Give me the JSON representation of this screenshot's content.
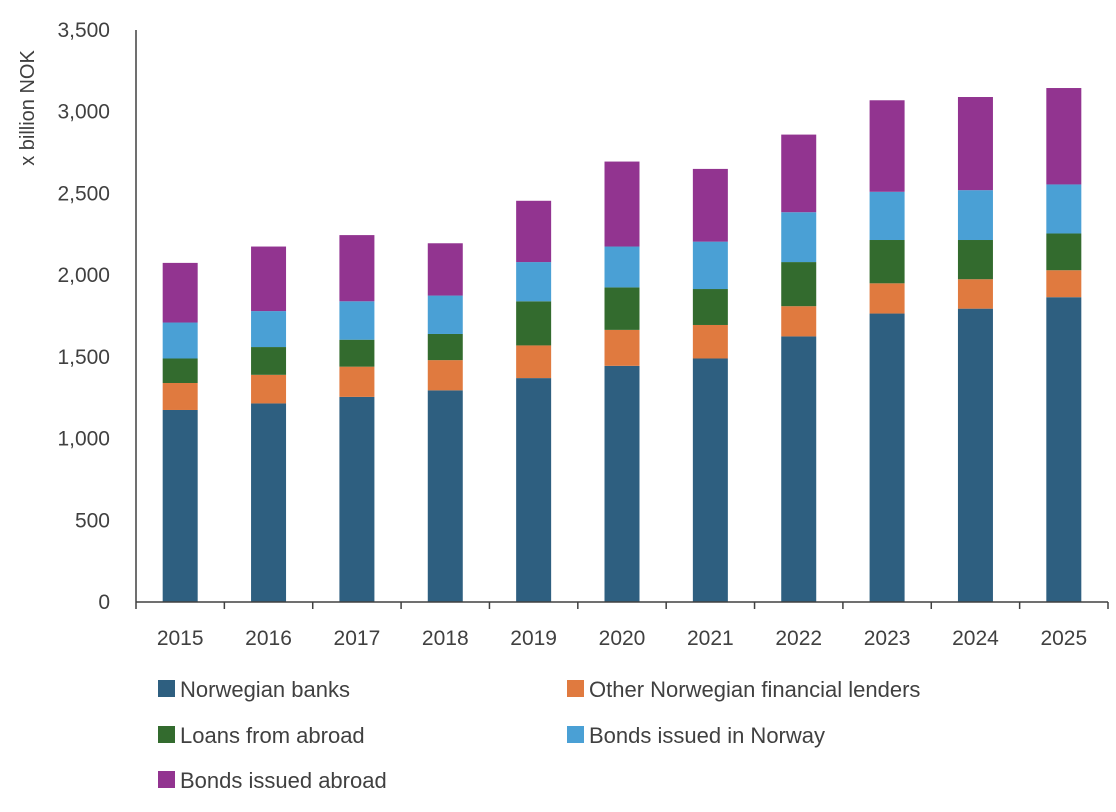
{
  "chart_data": {
    "type": "bar",
    "stacked": true,
    "title": "",
    "xlabel": "",
    "ylabel": "x billion NOK",
    "ylim": [
      0,
      3500
    ],
    "yticks": [
      0,
      500,
      1000,
      1500,
      2000,
      2500,
      3000,
      3500
    ],
    "ytick_labels": [
      "0",
      "500",
      "1,000",
      "1,500",
      "2,000",
      "2,500",
      "3,000",
      "3,500"
    ],
    "categories": [
      "2015",
      "2016",
      "2017",
      "2018",
      "2019",
      "2020",
      "2021",
      "2022",
      "2023",
      "2024",
      "2025"
    ],
    "series": [
      {
        "name": "Norwegian banks",
        "color": "#2e5f80",
        "values": [
          1175,
          1215,
          1255,
          1295,
          1370,
          1445,
          1490,
          1625,
          1765,
          1795,
          1865
        ]
      },
      {
        "name": "Other Norwegian financial lenders",
        "color": "#e07a3f",
        "values": [
          165,
          175,
          185,
          185,
          200,
          220,
          205,
          185,
          185,
          180,
          165
        ]
      },
      {
        "name": "Loans from abroad",
        "color": "#336b2e",
        "values": [
          150,
          170,
          165,
          160,
          270,
          260,
          220,
          270,
          265,
          240,
          225
        ]
      },
      {
        "name": "Bonds issued in Norway",
        "color": "#4aa0d5",
        "values": [
          220,
          220,
          235,
          235,
          240,
          250,
          290,
          305,
          295,
          305,
          300
        ]
      },
      {
        "name": "Bonds issued abroad",
        "color": "#923490",
        "values": [
          365,
          395,
          405,
          320,
          375,
          520,
          445,
          475,
          560,
          570,
          590
        ]
      }
    ],
    "legend_position": "bottom"
  }
}
